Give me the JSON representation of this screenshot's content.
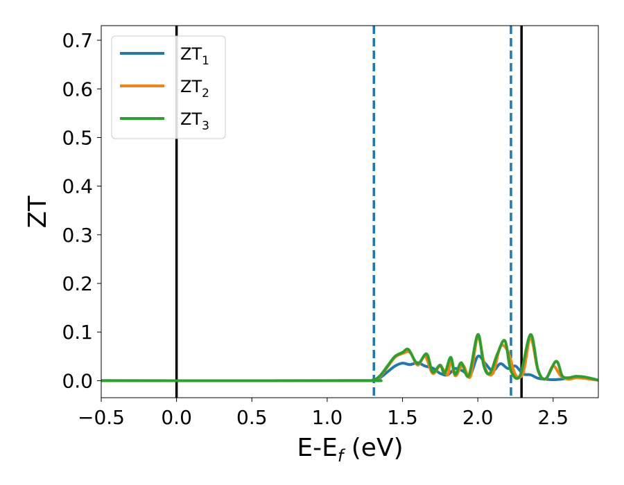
{
  "chart_data": {
    "type": "line",
    "xlabel": "E-E",
    "xlabel_sub": "f",
    "xlabel_unit": " (eV)",
    "ylabel": "ZT",
    "xlim": [
      -0.5,
      2.8
    ],
    "ylim": [
      -0.035,
      0.73
    ],
    "x_ticks": [
      -0.5,
      0.0,
      0.5,
      1.0,
      1.5,
      2.0,
      2.5
    ],
    "x_tick_labels": [
      "−0.5",
      "0.0",
      "0.5",
      "1.0",
      "1.5",
      "2.0",
      "2.5"
    ],
    "y_ticks": [
      0.0,
      0.1,
      0.2,
      0.3,
      0.4,
      0.5,
      0.6,
      0.7
    ],
    "y_tick_labels": [
      "0.0",
      "0.1",
      "0.2",
      "0.3",
      "0.4",
      "0.5",
      "0.6",
      "0.7"
    ],
    "grid": false,
    "legend_position": "top-left",
    "vertical_lines": [
      {
        "x": 0.0,
        "style": "solid",
        "color": "#000000"
      },
      {
        "x": 2.29,
        "style": "solid",
        "color": "#000000"
      },
      {
        "x": 1.31,
        "style": "dashed",
        "color": "#1f77b4"
      },
      {
        "x": 2.22,
        "style": "dashed",
        "color": "#1f77b4"
      }
    ],
    "series": [
      {
        "name": "ZT",
        "sub": "1",
        "color": "#1f77b4",
        "points": [
          [
            -0.5,
            0
          ],
          [
            1.2,
            0
          ],
          [
            1.3,
            0.001
          ],
          [
            1.35,
            0.006
          ],
          [
            1.4,
            0.018
          ],
          [
            1.45,
            0.03
          ],
          [
            1.5,
            0.036
          ],
          [
            1.55,
            0.033
          ],
          [
            1.6,
            0.037
          ],
          [
            1.65,
            0.03
          ],
          [
            1.7,
            0.026
          ],
          [
            1.75,
            0.015
          ],
          [
            1.8,
            0.012
          ],
          [
            1.85,
            0.025
          ],
          [
            1.9,
            0.02
          ],
          [
            1.95,
            0.012
          ],
          [
            2.0,
            0.05
          ],
          [
            2.05,
            0.035
          ],
          [
            2.1,
            0.02
          ],
          [
            2.15,
            0.035
          ],
          [
            2.2,
            0.025
          ],
          [
            2.25,
            0.03
          ],
          [
            2.3,
            0.014
          ],
          [
            2.35,
            0.012
          ],
          [
            2.4,
            0.005
          ],
          [
            2.45,
            0.003
          ],
          [
            2.5,
            0.002
          ],
          [
            2.55,
            0.003
          ],
          [
            2.6,
            0.005
          ],
          [
            2.65,
            0.007
          ],
          [
            2.7,
            0.006
          ],
          [
            2.75,
            0.003
          ],
          [
            2.8,
            0.001
          ]
        ]
      },
      {
        "name": "ZT",
        "sub": "2",
        "color": "#ff7f0e",
        "points": [
          [
            -0.5,
            0
          ],
          [
            1.2,
            0
          ],
          [
            1.3,
            0.001
          ],
          [
            1.35,
            0.008
          ],
          [
            1.4,
            0.028
          ],
          [
            1.45,
            0.048
          ],
          [
            1.5,
            0.056
          ],
          [
            1.55,
            0.058
          ],
          [
            1.6,
            0.032
          ],
          [
            1.65,
            0.05
          ],
          [
            1.7,
            0.015
          ],
          [
            1.75,
            0.03
          ],
          [
            1.8,
            0.012
          ],
          [
            1.82,
            0.045
          ],
          [
            1.85,
            0.01
          ],
          [
            1.9,
            0.032
          ],
          [
            1.95,
            0.008
          ],
          [
            2.0,
            0.09
          ],
          [
            2.05,
            0.025
          ],
          [
            2.1,
            0.015
          ],
          [
            2.15,
            0.07
          ],
          [
            2.2,
            0.06
          ],
          [
            2.25,
            0.012
          ],
          [
            2.3,
            0.015
          ],
          [
            2.35,
            0.088
          ],
          [
            2.4,
            0.02
          ],
          [
            2.45,
            0.003
          ],
          [
            2.5,
            0.03
          ],
          [
            2.55,
            0.01
          ],
          [
            2.6,
            0.003
          ],
          [
            2.65,
            0.006
          ],
          [
            2.7,
            0.005
          ],
          [
            2.75,
            0.003
          ],
          [
            2.8,
            0.001
          ]
        ]
      },
      {
        "name": "ZT",
        "sub": "3",
        "color": "#2ca02c",
        "points": [
          [
            -0.5,
            0
          ],
          [
            1.2,
            0
          ],
          [
            1.3,
            0.001
          ],
          [
            1.35,
            0.01
          ],
          [
            1.4,
            0.03
          ],
          [
            1.45,
            0.05
          ],
          [
            1.5,
            0.058
          ],
          [
            1.54,
            0.064
          ],
          [
            1.6,
            0.035
          ],
          [
            1.66,
            0.055
          ],
          [
            1.7,
            0.018
          ],
          [
            1.75,
            0.032
          ],
          [
            1.78,
            0.015
          ],
          [
            1.82,
            0.048
          ],
          [
            1.85,
            0.013
          ],
          [
            1.89,
            0.037
          ],
          [
            1.94,
            0.01
          ],
          [
            2.0,
            0.095
          ],
          [
            2.04,
            0.03
          ],
          [
            2.08,
            0.015
          ],
          [
            2.13,
            0.055
          ],
          [
            2.18,
            0.082
          ],
          [
            2.22,
            0.02
          ],
          [
            2.28,
            0.01
          ],
          [
            2.35,
            0.095
          ],
          [
            2.4,
            0.022
          ],
          [
            2.45,
            0.004
          ],
          [
            2.52,
            0.04
          ],
          [
            2.56,
            0.01
          ],
          [
            2.6,
            0.006
          ],
          [
            2.65,
            0.009
          ],
          [
            2.7,
            0.008
          ],
          [
            2.75,
            0.005
          ],
          [
            2.8,
            0.001
          ]
        ]
      }
    ]
  }
}
